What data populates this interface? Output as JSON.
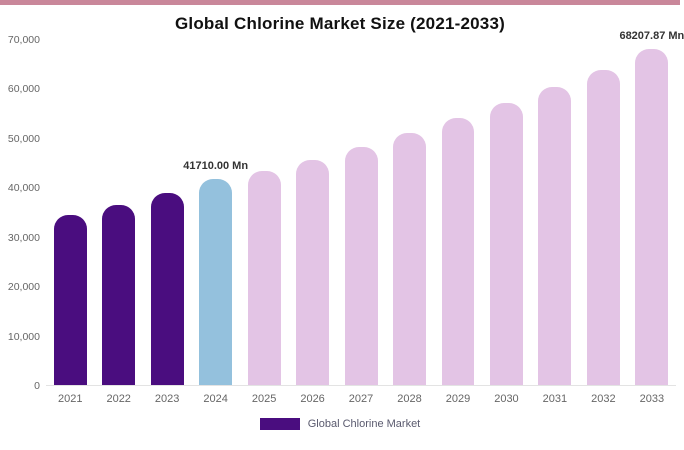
{
  "title": "Global Chlorine Market Size (2021-2033)",
  "top_strip_color": "#c9879a",
  "legend": {
    "label": "Global Chlorine Market",
    "swatch_color": "#4a0d7f"
  },
  "chart_data": {
    "type": "bar",
    "title": "Global Chlorine Market Size (2021-2033)",
    "categories": [
      "2021",
      "2022",
      "2023",
      "2024",
      "2025",
      "2026",
      "2027",
      "2028",
      "2029",
      "2030",
      "2031",
      "2032",
      "2033"
    ],
    "series": [
      {
        "name": "Global Chlorine Market",
        "values": [
          34500,
          36600,
          38900,
          41710,
          43400,
          45700,
          48300,
          51200,
          54100,
          57300,
          60500,
          64000,
          68207.87
        ]
      }
    ],
    "bar_colors": [
      "#4a0d7f",
      "#4a0d7f",
      "#4a0d7f",
      "#94c1dd",
      "#e3c4e5",
      "#e3c4e5",
      "#e3c4e5",
      "#e3c4e5",
      "#e3c4e5",
      "#e3c4e5",
      "#e3c4e5",
      "#e3c4e5",
      "#e3c4e5"
    ],
    "ylim": [
      0,
      70000
    ],
    "ytick_labels": [
      "0",
      "10,000",
      "20,000",
      "30,000",
      "40,000",
      "50,000",
      "60,000",
      "70,000"
    ],
    "annotations": [
      {
        "index": 3,
        "text": "41710.00 Mn"
      },
      {
        "index": 12,
        "text": "68207.87 Mn"
      }
    ],
    "xlabel": "",
    "ylabel": "",
    "grid": false,
    "legend_position": "bottom"
  }
}
